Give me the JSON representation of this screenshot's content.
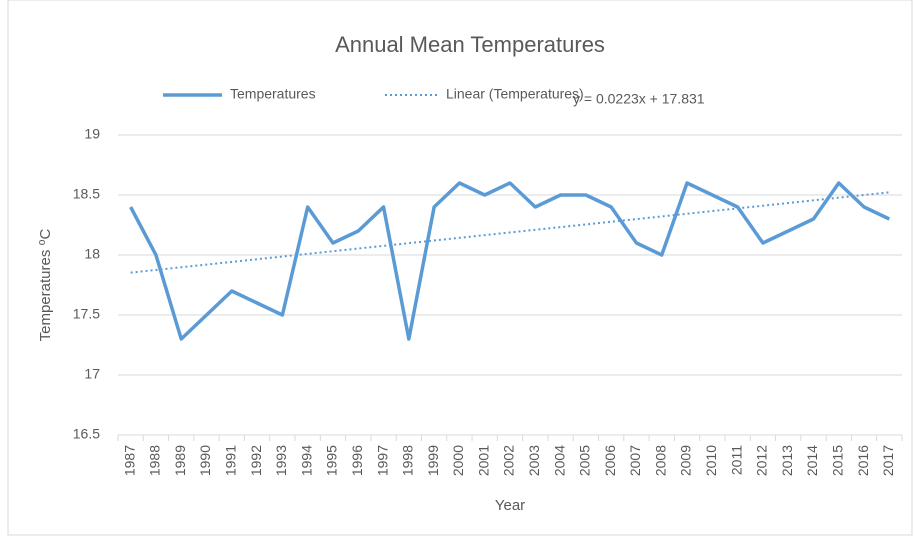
{
  "chart_data": {
    "type": "line",
    "title": "Annual Mean Temperatures",
    "x_label": "Year",
    "y_label": "Temperatures ⁰C",
    "categories": [
      "1987",
      "1988",
      "1989",
      "1990",
      "1991",
      "1992",
      "1993",
      "1994",
      "1995",
      "1996",
      "1997",
      "1998",
      "1999",
      "2000",
      "2001",
      "2002",
      "2003",
      "2004",
      "2005",
      "2006",
      "2007",
      "2008",
      "2009",
      "2010",
      "2011",
      "2012",
      "2013",
      "2014",
      "2015",
      "2016",
      "2017"
    ],
    "series": [
      {
        "name": "Temperatures",
        "color": "#5b9bd5",
        "values": [
          18.4,
          18.0,
          17.3,
          17.5,
          17.7,
          17.6,
          17.5,
          18.4,
          18.1,
          18.2,
          18.4,
          17.3,
          18.4,
          18.6,
          18.5,
          18.6,
          18.4,
          18.5,
          18.5,
          18.4,
          18.1,
          18.0,
          18.6,
          18.5,
          18.4,
          18.1,
          18.2,
          18.3,
          18.6,
          18.4,
          18.3
        ]
      }
    ],
    "trendline": {
      "name": "Linear (Temperatures)",
      "color": "#5b9bd5",
      "slope": 0.0223,
      "intercept": 17.831,
      "label": "y = 0.0223x + 17.831"
    },
    "ylim": [
      16.5,
      19
    ],
    "yticks": [
      16.5,
      17,
      17.5,
      18,
      18.5,
      19
    ],
    "grid": true,
    "legend": "top"
  }
}
